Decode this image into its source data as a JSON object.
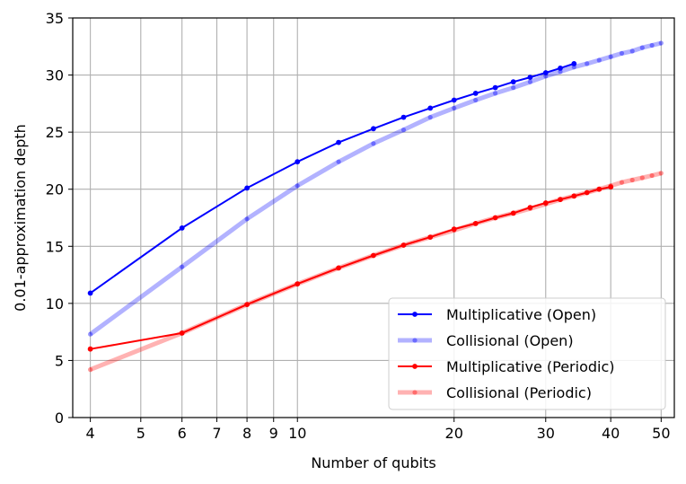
{
  "chart_data": {
    "type": "line",
    "xlabel": "Number of qubits",
    "ylabel": "0.01-approximation depth",
    "x_scale": "log",
    "xlim": [
      3.7,
      53
    ],
    "ylim": [
      0,
      35
    ],
    "x_ticks": [
      4,
      5,
      6,
      7,
      8,
      9,
      10,
      20,
      30,
      40,
      50
    ],
    "x_tick_labels": [
      "4",
      "5",
      "6",
      "7",
      "8",
      "9",
      "10",
      "20",
      "30",
      "40",
      "50"
    ],
    "y_ticks": [
      0,
      5,
      10,
      15,
      20,
      25,
      30,
      35
    ],
    "y_tick_labels": [
      "0",
      "5",
      "10",
      "15",
      "20",
      "25",
      "30",
      "35"
    ],
    "grid": true,
    "legend_position": "lower-right",
    "series": [
      {
        "name": "Multiplicative (Open)",
        "color": "#0000ff",
        "style": "solid-thin",
        "x": [
          4,
          6,
          8,
          10,
          12,
          14,
          16,
          18,
          20,
          22,
          24,
          26,
          28,
          30,
          32,
          34
        ],
        "y": [
          10.9,
          16.6,
          20.1,
          22.4,
          24.1,
          25.3,
          26.3,
          27.1,
          27.8,
          28.4,
          28.9,
          29.4,
          29.8,
          30.2,
          30.6,
          31.0
        ]
      },
      {
        "name": "Collisional (Open)",
        "color": "#0000ff",
        "style": "thick-faded",
        "x": [
          4,
          6,
          8,
          10,
          12,
          14,
          16,
          18,
          20,
          22,
          24,
          26,
          28,
          30,
          32,
          34,
          36,
          38,
          40,
          42,
          44,
          46,
          48,
          50
        ],
        "y": [
          7.3,
          13.2,
          17.4,
          20.3,
          22.4,
          24.0,
          25.2,
          26.3,
          27.1,
          27.8,
          28.4,
          28.9,
          29.4,
          29.9,
          30.3,
          30.7,
          31.0,
          31.3,
          31.6,
          31.9,
          32.1,
          32.4,
          32.6,
          32.8
        ]
      },
      {
        "name": "Multiplicative (Periodic)",
        "color": "#ff0000",
        "style": "solid-thin",
        "x": [
          4,
          6,
          8,
          10,
          12,
          14,
          16,
          18,
          20,
          22,
          24,
          26,
          28,
          30,
          32,
          34,
          36,
          38,
          40
        ],
        "y": [
          6.0,
          7.4,
          9.9,
          11.7,
          13.1,
          14.2,
          15.1,
          15.8,
          16.5,
          17.0,
          17.5,
          17.9,
          18.4,
          18.8,
          19.1,
          19.4,
          19.7,
          20.0,
          20.2
        ]
      },
      {
        "name": "Collisional (Periodic)",
        "color": "#ff0000",
        "style": "thick-faded",
        "x": [
          4,
          6,
          8,
          10,
          12,
          14,
          16,
          18,
          20,
          22,
          24,
          26,
          28,
          30,
          32,
          34,
          36,
          38,
          40,
          42,
          44,
          46,
          48,
          50
        ],
        "y": [
          4.2,
          7.4,
          9.9,
          11.7,
          13.1,
          14.2,
          15.1,
          15.8,
          16.4,
          17.0,
          17.5,
          17.9,
          18.3,
          18.7,
          19.1,
          19.4,
          19.7,
          20.0,
          20.3,
          20.6,
          20.8,
          21.0,
          21.2,
          21.4
        ]
      }
    ]
  }
}
